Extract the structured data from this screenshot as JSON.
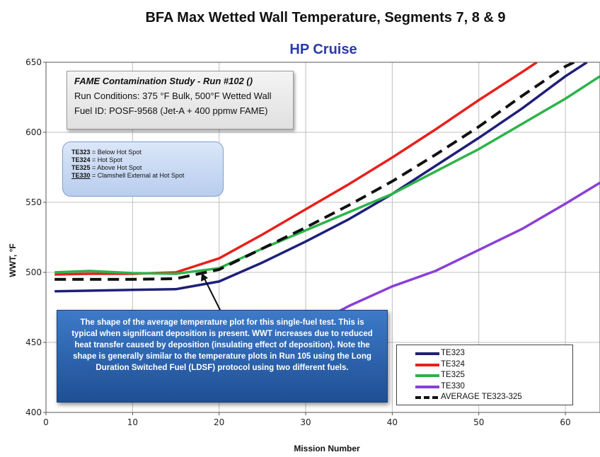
{
  "chart_data": {
    "type": "line",
    "title": "BFA Max Wetted Wall Temperature, Segments 7, 8 & 9",
    "subtitle": "HP Cruise",
    "xlabel": "Mission Number",
    "ylabel": "WWT, °F",
    "xlim": [
      0,
      64
    ],
    "ylim": [
      400,
      650
    ],
    "xticks": [
      0,
      10,
      20,
      30,
      40,
      50,
      60
    ],
    "yticks": [
      400,
      450,
      500,
      550,
      600,
      650
    ],
    "grid": true,
    "legend_position": "bottom-right",
    "series": [
      {
        "name": "TE323",
        "color": "#1f1f7a",
        "dashed": false,
        "points": [
          [
            1,
            486.5
          ],
          [
            10,
            487.5
          ],
          [
            15,
            488
          ],
          [
            20,
            493.5
          ],
          [
            25,
            507
          ],
          [
            30,
            522
          ],
          [
            35,
            538
          ],
          [
            40,
            556
          ],
          [
            45,
            576
          ],
          [
            50,
            596
          ],
          [
            55,
            617
          ],
          [
            60,
            640
          ],
          [
            62.5,
            650
          ]
        ]
      },
      {
        "name": "TE324",
        "color": "#e8201c",
        "dashed": false,
        "points": [
          [
            1,
            498.5
          ],
          [
            5,
            499
          ],
          [
            10,
            499
          ],
          [
            15,
            500
          ],
          [
            20,
            510
          ],
          [
            25,
            527
          ],
          [
            30,
            545
          ],
          [
            35,
            563
          ],
          [
            40,
            582
          ],
          [
            45,
            602
          ],
          [
            50,
            623
          ],
          [
            55,
            643
          ],
          [
            56.7,
            650
          ]
        ]
      },
      {
        "name": "TE325",
        "color": "#2db34a",
        "dashed": false,
        "points": [
          [
            1,
            500
          ],
          [
            5,
            501
          ],
          [
            10,
            499.5
          ],
          [
            15,
            499
          ],
          [
            20,
            503
          ],
          [
            25,
            517
          ],
          [
            30,
            530
          ],
          [
            35,
            543
          ],
          [
            40,
            556
          ],
          [
            45,
            572
          ],
          [
            50,
            588
          ],
          [
            55,
            606
          ],
          [
            60,
            624
          ],
          [
            64,
            640
          ]
        ]
      },
      {
        "name": "TE330",
        "color": "#8a3fd8",
        "dashed": false,
        "points": [
          [
            31,
            463
          ],
          [
            35,
            476
          ],
          [
            40,
            490
          ],
          [
            45,
            501
          ],
          [
            50,
            516
          ],
          [
            55,
            531
          ],
          [
            60,
            549
          ],
          [
            64,
            564
          ]
        ]
      },
      {
        "name": "AVERAGE TE323-325",
        "color": "#111111",
        "dashed": true,
        "points": [
          [
            1,
            495
          ],
          [
            10,
            495
          ],
          [
            15,
            495.5
          ],
          [
            20,
            502
          ],
          [
            25,
            517
          ],
          [
            30,
            532
          ],
          [
            35,
            548
          ],
          [
            40,
            565
          ],
          [
            45,
            584
          ],
          [
            50,
            604
          ],
          [
            55,
            626
          ],
          [
            60,
            647
          ],
          [
            61,
            650
          ]
        ]
      }
    ]
  },
  "info_box": {
    "heading": "FAME Contamination Study - Run #102 ()",
    "line1": "Run Conditions: 375 °F Bulk, 500°F Wetted Wall",
    "line2": "Fuel ID: POSF-9568 (Jet-A + 400 ppmw FAME)"
  },
  "key_box": [
    {
      "tag": "TE323",
      "desc": " = Below Hot Spot",
      "underline": false
    },
    {
      "tag": "TE324",
      "desc": " = Hot Spot",
      "underline": false
    },
    {
      "tag": "TE325",
      "desc": " = Above Hot Spot",
      "underline": false
    },
    {
      "tag": "TE330",
      "desc": " = Clamshell  External at Hot Spot",
      "underline": true
    }
  ],
  "note_box": {
    "text": "The shape of the average temperature plot for this single-fuel test. This is typical when significant deposition is present. WWT increases due to reduced heat transfer  caused by deposition (insulating effect of deposition). Note the shape is generally similar to the temperature plots in Run 105 using the Long Duration Switched Fuel (LDSF) protocol using two different fuels."
  },
  "legend_labels": [
    "TE323",
    "TE324",
    "TE325",
    "TE330",
    "AVERAGE TE323-325"
  ]
}
